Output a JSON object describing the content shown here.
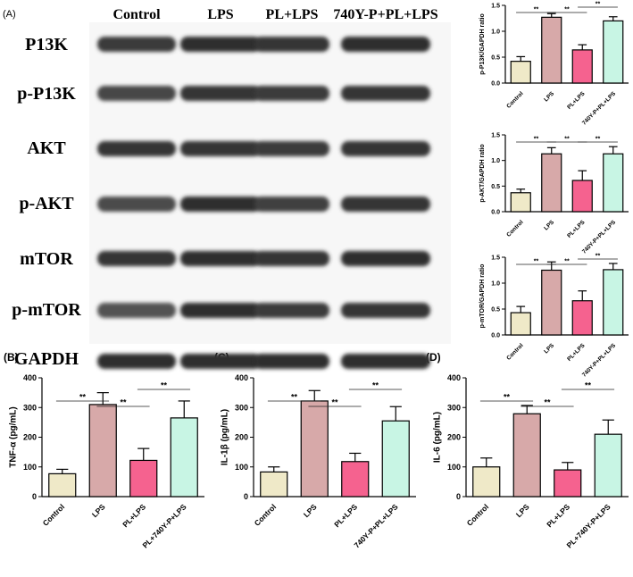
{
  "panel_labels": {
    "a": "(A)",
    "b": "(B)",
    "c": "(C)",
    "d": "(D)"
  },
  "blot": {
    "columns": [
      "Control",
      "LPS",
      "PL+LPS",
      "740Y-P+PL+LPS"
    ],
    "rows": [
      {
        "label": "P13K",
        "intensity": [
          0.85,
          0.95,
          0.9,
          0.95
        ]
      },
      {
        "label": "p-P13K",
        "intensity": [
          0.75,
          0.9,
          0.85,
          0.9
        ]
      },
      {
        "label": "AKT",
        "intensity": [
          0.9,
          0.9,
          0.85,
          0.9
        ]
      },
      {
        "label": "p-AKT",
        "intensity": [
          0.7,
          0.95,
          0.8,
          0.9
        ]
      },
      {
        "label": "mTOR",
        "intensity": [
          0.9,
          0.95,
          0.9,
          0.95
        ]
      },
      {
        "label": "p-mTOR",
        "intensity": [
          0.65,
          0.95,
          0.85,
          0.9
        ]
      },
      {
        "label": "GAPDH",
        "intensity": [
          0.95,
          0.95,
          0.95,
          0.95
        ]
      }
    ]
  },
  "colors": [
    "#efe9c8",
    "#d7a9a9",
    "#f5628f",
    "#c8f5e4"
  ],
  "chart_data": [
    {
      "id": "p-p13k",
      "type": "bar",
      "categories": [
        "Control",
        "LPS",
        "PL+LPS",
        "740Y-P+PL+LPS"
      ],
      "values": [
        0.42,
        1.27,
        0.64,
        1.2
      ],
      "errors": [
        0.09,
        0.07,
        0.1,
        0.08
      ],
      "ylabel": "p-P13K/GAPDH ratio",
      "ylim": [
        0,
        1.5
      ],
      "yticks": [
        0.0,
        0.5,
        1.0,
        1.5
      ],
      "tick_labels": [
        "0.0",
        "0.5",
        "1.0",
        "1.5"
      ],
      "sig": [
        {
          "from": 0,
          "to": 1,
          "level": 1,
          "text": "**"
        },
        {
          "from": 1,
          "to": 2,
          "level": 1,
          "text": "**"
        },
        {
          "from": 2,
          "to": 3,
          "level": 0,
          "text": "**"
        }
      ]
    },
    {
      "id": "p-akt",
      "type": "bar",
      "categories": [
        "Control",
        "LPS",
        "PL+LPS",
        "740Y-P+PL+LPS"
      ],
      "values": [
        0.37,
        1.13,
        0.61,
        1.13
      ],
      "errors": [
        0.07,
        0.12,
        0.19,
        0.14
      ],
      "ylabel": "p-AKT/GAPDH ratio",
      "ylim": [
        0,
        1.5
      ],
      "yticks": [
        0.0,
        0.5,
        1.0,
        1.5
      ],
      "tick_labels": [
        "0.0",
        "0.5",
        "1.0",
        "1.5"
      ],
      "sig": [
        {
          "from": 0,
          "to": 1,
          "level": 1,
          "text": "**"
        },
        {
          "from": 1,
          "to": 2,
          "level": 1,
          "text": "**"
        },
        {
          "from": 2,
          "to": 3,
          "level": 1,
          "text": "**"
        }
      ]
    },
    {
      "id": "p-mtor",
      "type": "bar",
      "categories": [
        "Control",
        "LPS",
        "PL+LPS",
        "740Y-P+PL+LPS"
      ],
      "values": [
        0.43,
        1.25,
        0.66,
        1.26
      ],
      "errors": [
        0.12,
        0.16,
        0.19,
        0.12
      ],
      "ylabel": "p-mTOR/GAPDH ratio",
      "ylim": [
        0,
        1.5
      ],
      "yticks": [
        0.0,
        0.5,
        1.0,
        1.5
      ],
      "tick_labels": [
        "0.0",
        "0.5",
        "1.0",
        "1.5"
      ],
      "sig": [
        {
          "from": 0,
          "to": 1,
          "level": 1,
          "text": "**"
        },
        {
          "from": 1,
          "to": 2,
          "level": 1,
          "text": "**"
        },
        {
          "from": 2,
          "to": 3,
          "level": 0,
          "text": "**"
        }
      ]
    },
    {
      "id": "tnf",
      "type": "bar",
      "categories": [
        "Control",
        "LPS",
        "PL+LPS",
        "PL+740Y-P+LPS"
      ],
      "values": [
        77,
        310,
        122,
        265
      ],
      "errors": [
        15,
        40,
        40,
        57
      ],
      "ylabel": "TNF-α (pg/mL)",
      "ylim": [
        0,
        400
      ],
      "yticks": [
        0,
        100,
        200,
        300,
        400
      ],
      "tick_labels": [
        "0",
        "100",
        "200",
        "300",
        "400"
      ],
      "sig": [
        {
          "from": 0,
          "to": 1,
          "level": 1,
          "text": "**"
        },
        {
          "from": 1,
          "to": 2,
          "level": 2,
          "text": "**"
        },
        {
          "from": 2,
          "to": 3,
          "level": 0,
          "text": "**"
        }
      ]
    },
    {
      "id": "il1b",
      "type": "bar",
      "categories": [
        "Control",
        "LPS",
        "PL+LPS",
        "740Y-P+PL+LPS"
      ],
      "values": [
        83,
        322,
        118,
        255
      ],
      "errors": [
        17,
        35,
        28,
        48
      ],
      "ylabel": "IL-1β (pg/mL)",
      "ylim": [
        0,
        400
      ],
      "yticks": [
        0,
        100,
        200,
        300,
        400
      ],
      "tick_labels": [
        "0",
        "100",
        "200",
        "300",
        "400"
      ],
      "sig": [
        {
          "from": 0,
          "to": 1,
          "level": 1,
          "text": "**"
        },
        {
          "from": 1,
          "to": 2,
          "level": 2,
          "text": "**"
        },
        {
          "from": 2,
          "to": 3,
          "level": 0,
          "text": "**"
        }
      ]
    },
    {
      "id": "il6",
      "type": "bar",
      "categories": [
        "Control",
        "LPS",
        "PL+LPS",
        "PL+740Y-P+LPS"
      ],
      "values": [
        100,
        279,
        90,
        210
      ],
      "errors": [
        30,
        28,
        25,
        48
      ],
      "ylabel": "IL-6 (pg/mL)",
      "ylim": [
        0,
        400
      ],
      "yticks": [
        0,
        100,
        200,
        300,
        400
      ],
      "tick_labels": [
        "0",
        "100",
        "200",
        "300",
        "400"
      ],
      "sig": [
        {
          "from": 0,
          "to": 1,
          "level": 1,
          "text": "**"
        },
        {
          "from": 1,
          "to": 2,
          "level": 2,
          "text": "**"
        },
        {
          "from": 2,
          "to": 3,
          "level": 0,
          "text": "**"
        }
      ]
    }
  ]
}
